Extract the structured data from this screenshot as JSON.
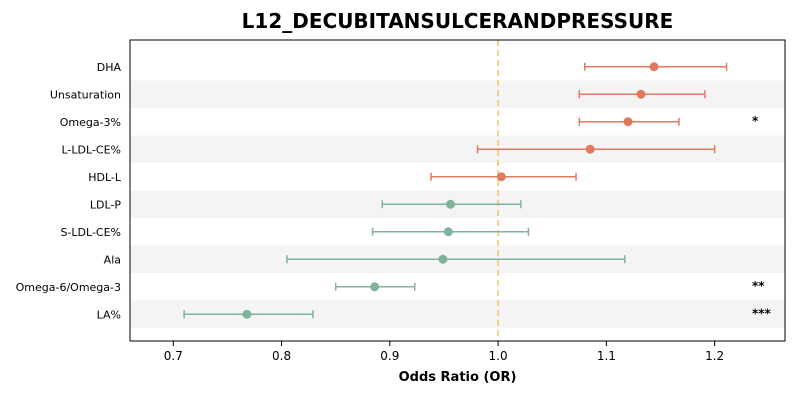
{
  "chart_data": {
    "type": "forest",
    "title": "L12_DECUBITANSULCERANDPRESSURE",
    "xlabel": "Odds Ratio (OR)",
    "ylabel": "",
    "xlim": [
      0.66,
      1.265
    ],
    "xticks": [
      "0.7",
      "0.8",
      "0.9",
      "1.0",
      "1.1",
      "1.2"
    ],
    "reference_line": 1.0,
    "grid": false,
    "alternating_row_shading": true,
    "colors": {
      "positive": "#e07a5f",
      "negative": "#81b29a",
      "reference": "#f2c06b",
      "row_band": "#f4f4f4"
    },
    "rows": [
      {
        "label": "DHA",
        "or": 1.144,
        "lower": 1.08,
        "upper": 1.211,
        "sig": ""
      },
      {
        "label": "Unsaturation",
        "or": 1.132,
        "lower": 1.075,
        "upper": 1.191,
        "sig": ""
      },
      {
        "label": "Omega-3%",
        "or": 1.12,
        "lower": 1.075,
        "upper": 1.167,
        "sig": "*"
      },
      {
        "label": "L-LDL-CE%",
        "or": 1.085,
        "lower": 0.981,
        "upper": 1.2,
        "sig": ""
      },
      {
        "label": "HDL-L",
        "or": 1.003,
        "lower": 0.938,
        "upper": 1.072,
        "sig": ""
      },
      {
        "label": "LDL-P",
        "or": 0.956,
        "lower": 0.893,
        "upper": 1.021,
        "sig": ""
      },
      {
        "label": "S-LDL-CE%",
        "or": 0.954,
        "lower": 0.884,
        "upper": 1.028,
        "sig": ""
      },
      {
        "label": "Ala",
        "or": 0.949,
        "lower": 0.805,
        "upper": 1.117,
        "sig": ""
      },
      {
        "label": "Omega-6/Omega-3",
        "or": 0.886,
        "lower": 0.85,
        "upper": 0.923,
        "sig": "**"
      },
      {
        "label": "LA%",
        "or": 0.768,
        "lower": 0.71,
        "upper": 0.829,
        "sig": "***"
      }
    ]
  }
}
